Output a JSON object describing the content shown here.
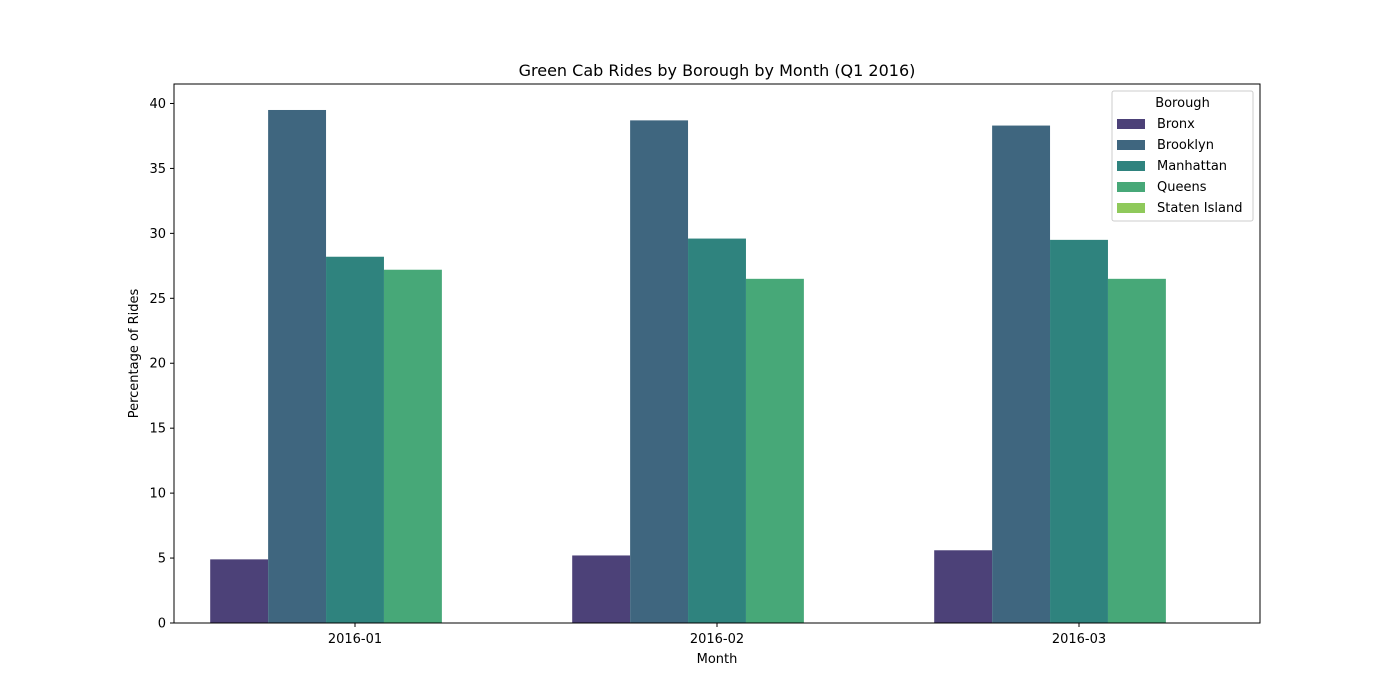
{
  "chart_data": {
    "type": "bar",
    "title": "Green Cab Rides by Borough by Month (Q1 2016)",
    "xlabel": "Month",
    "ylabel": "Percentage of Rides",
    "categories": [
      "2016-01",
      "2016-02",
      "2016-03"
    ],
    "ylim": [
      0,
      41.5
    ],
    "yticks": [
      0,
      5,
      10,
      15,
      20,
      25,
      30,
      35,
      40
    ],
    "grid": false,
    "legend": {
      "title": "Borough",
      "placement": "top-right"
    },
    "series": [
      {
        "name": "Bronx",
        "color": "#4c4178",
        "values": [
          4.9,
          5.2,
          5.6
        ]
      },
      {
        "name": "Brooklyn",
        "color": "#3f667f",
        "values": [
          39.5,
          38.7,
          38.3
        ]
      },
      {
        "name": "Manhattan",
        "color": "#2f837e",
        "values": [
          28.2,
          29.6,
          29.5
        ]
      },
      {
        "name": "Queens",
        "color": "#47a878",
        "values": [
          27.2,
          26.5,
          26.5
        ]
      },
      {
        "name": "Staten Island",
        "color": "#8fc95b",
        "values": [
          0,
          0,
          0
        ]
      }
    ]
  }
}
